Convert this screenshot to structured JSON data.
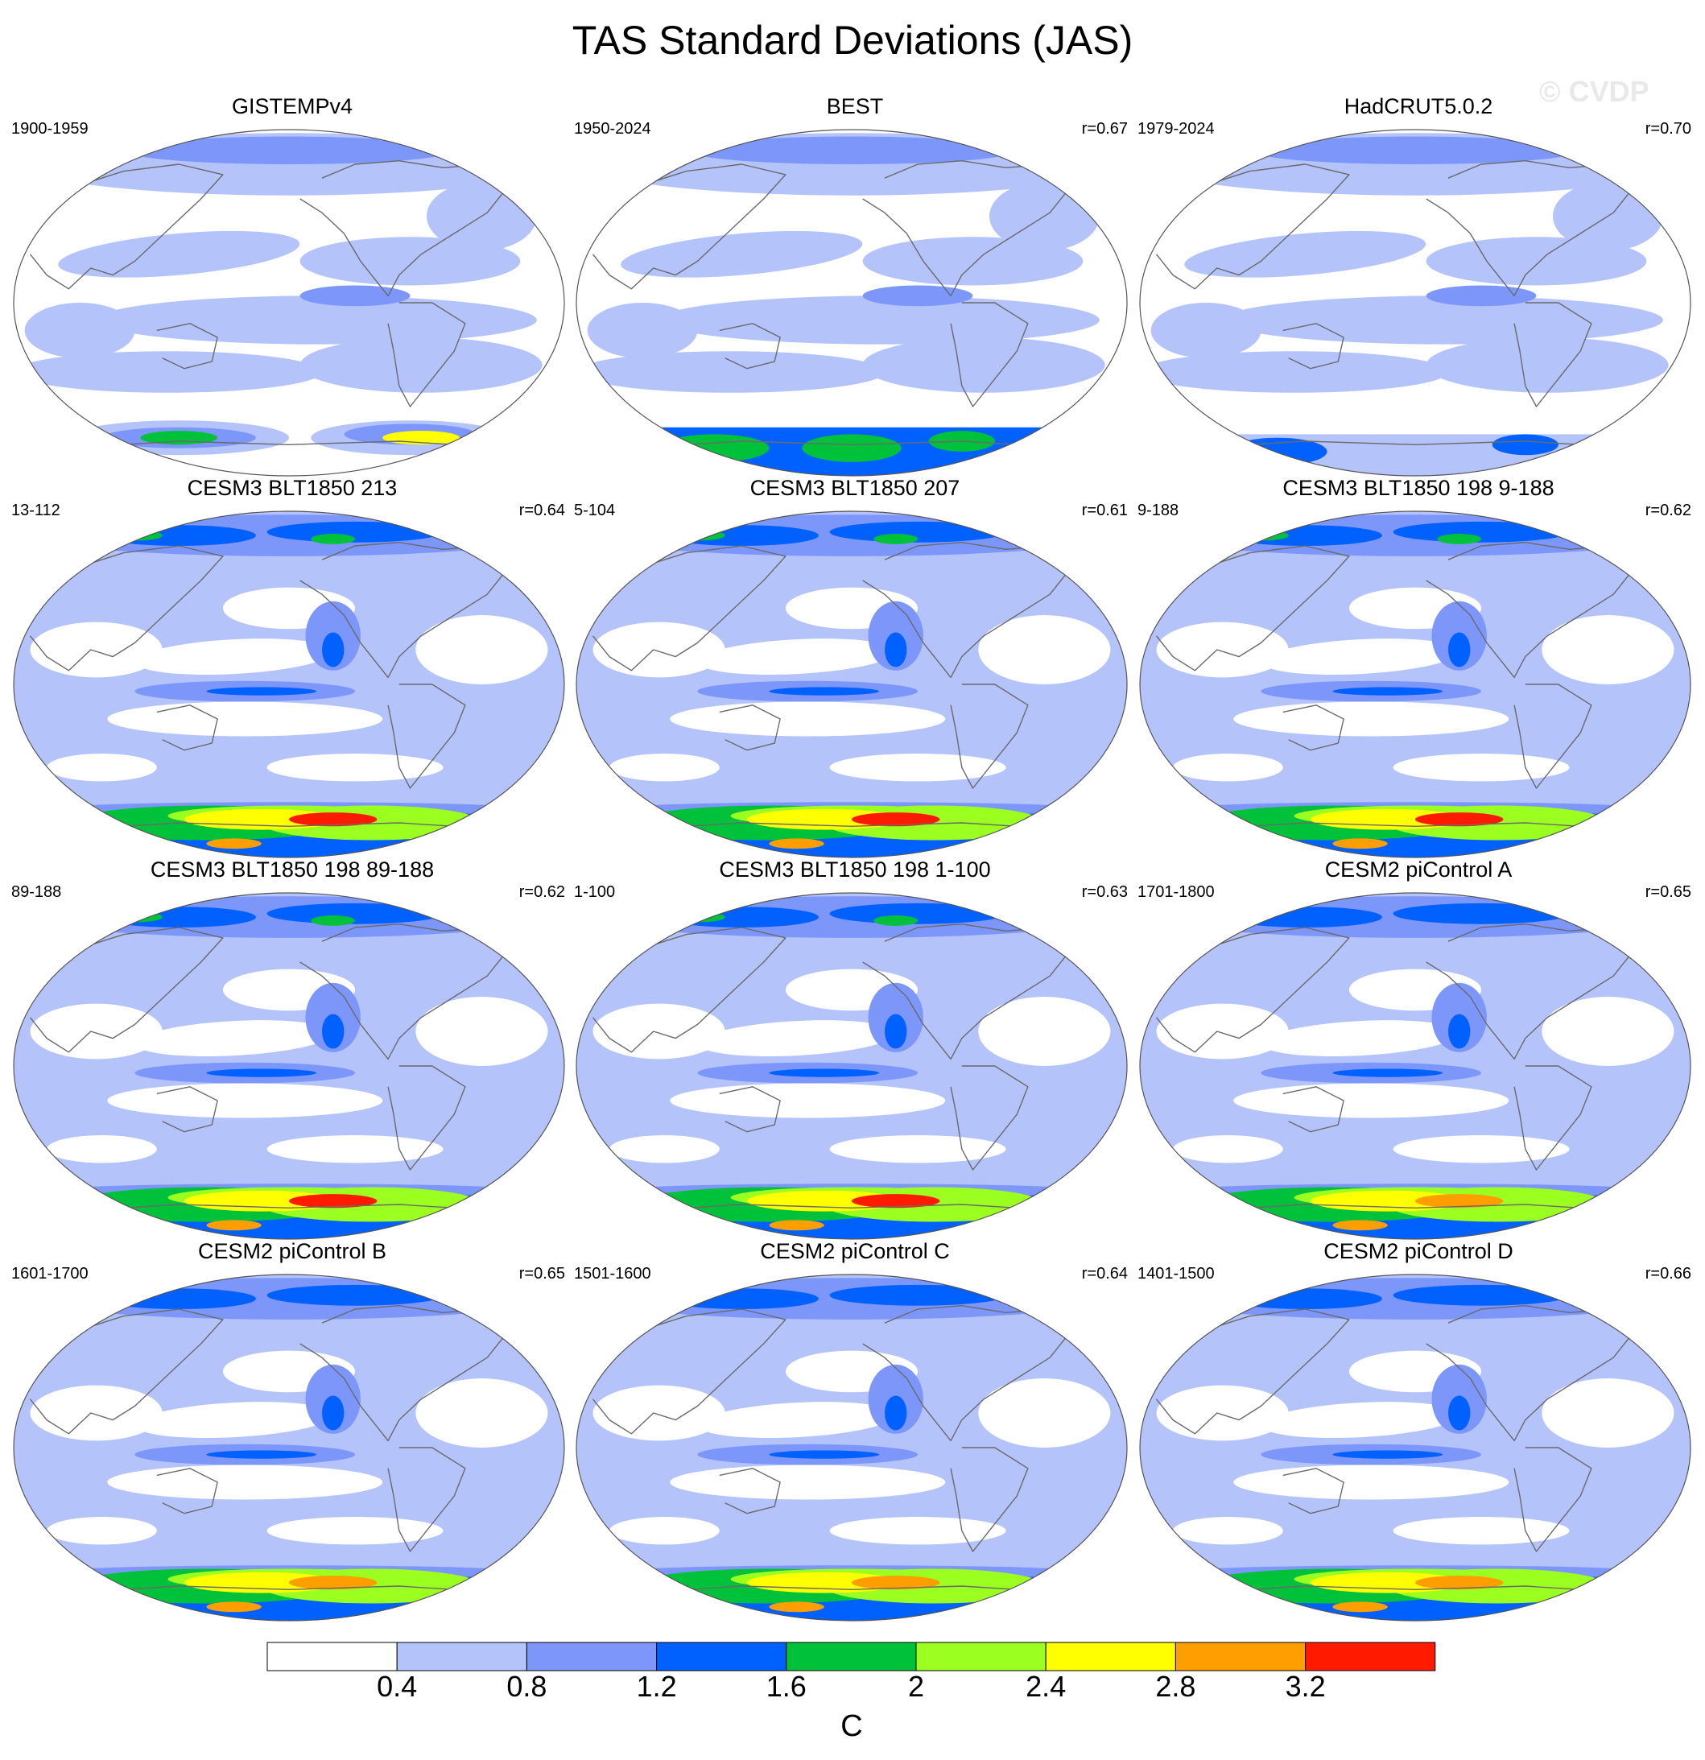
{
  "title": "TAS Standard Deviations (JAS)",
  "watermark": "© CVDP",
  "colorbar": {
    "unit": "C",
    "ticks": [
      "0.4",
      "0.8",
      "1.2",
      "1.6",
      "2",
      "2.4",
      "2.8",
      "3.2"
    ],
    "colors": [
      "#ffffff",
      "#b4c3fa",
      "#7d96fa",
      "#0061ff",
      "#00c23a",
      "#9bff1f",
      "#ffff00",
      "#ff9e00",
      "#ff1a00"
    ]
  },
  "panels": [
    {
      "title": "GISTEMPv4",
      "years": "1900-1959",
      "corr": "",
      "type": "gistemp"
    },
    {
      "title": "BEST",
      "years": "1950-2024",
      "corr": "r=0.67",
      "type": "best"
    },
    {
      "title": "HadCRUT5.0.2",
      "years": "1979-2024",
      "corr": "r=0.70",
      "type": "hadcrut"
    },
    {
      "title": "CESM3 BLT1850 213",
      "years": "13-112",
      "corr": "r=0.64",
      "type": "model_strong"
    },
    {
      "title": "CESM3 BLT1850 207",
      "years": "5-104",
      "corr": "r=0.61",
      "type": "model_strong"
    },
    {
      "title": "CESM3 BLT1850 198 9-188",
      "years": "9-188",
      "corr": "r=0.62",
      "type": "model_strong"
    },
    {
      "title": "CESM3 BLT1850 198 89-188",
      "years": "89-188",
      "corr": "r=0.62",
      "type": "model_strong"
    },
    {
      "title": "CESM3 BLT1850 198 1-100",
      "years": "1-100",
      "corr": "r=0.63",
      "type": "model_strong"
    },
    {
      "title": "CESM2 piControl A",
      "years": "1701-1800",
      "corr": "r=0.65",
      "type": "model_weak"
    },
    {
      "title": "CESM2 piControl B",
      "years": "1601-1700",
      "corr": "r=0.65",
      "type": "model_weak"
    },
    {
      "title": "CESM2 piControl C",
      "years": "1501-1600",
      "corr": "r=0.64",
      "type": "model_weak"
    },
    {
      "title": "CESM2 piControl D",
      "years": "1401-1500",
      "corr": "r=0.66",
      "type": "model_weak"
    }
  ]
}
